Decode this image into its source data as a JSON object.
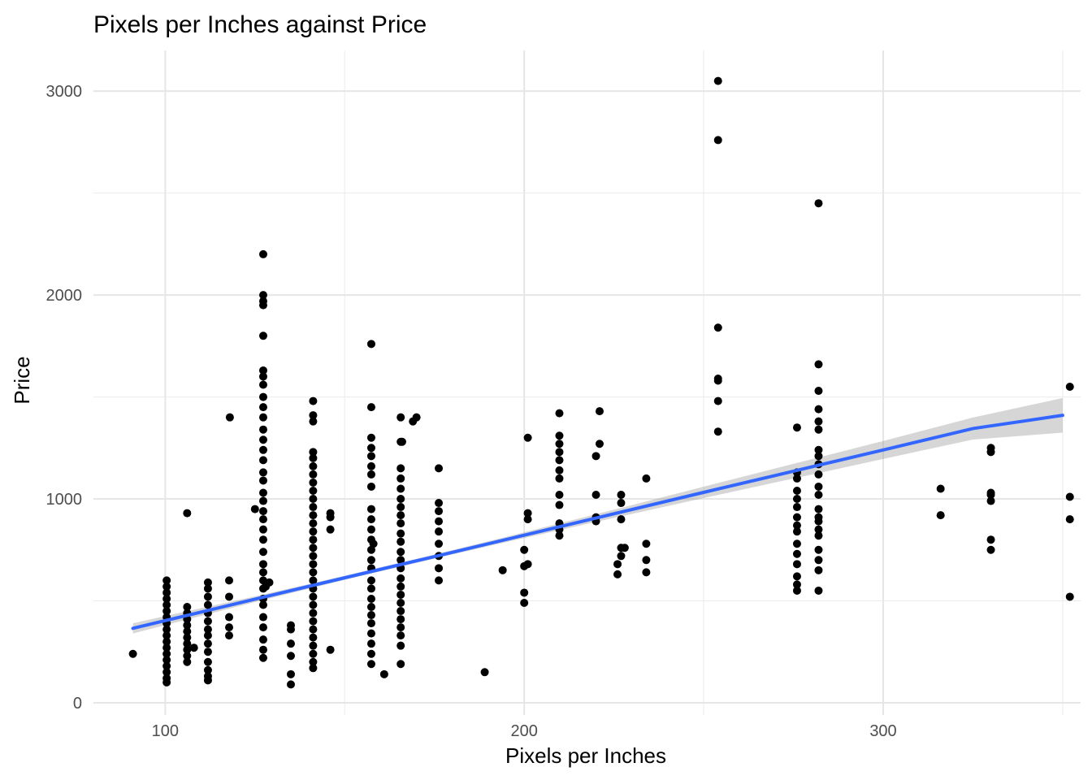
{
  "chart_data": {
    "type": "scatter",
    "title": "Pixels per Inches against Price",
    "xlabel": "Pixels per Inches",
    "ylabel": "Price",
    "xlim": [
      80,
      355
    ],
    "ylim": [
      -60,
      3200
    ],
    "x_ticks": [
      100,
      200,
      300
    ],
    "y_ticks": [
      0,
      1000,
      2000,
      3000
    ],
    "x_minor_ticks": [
      150,
      250,
      350
    ],
    "y_minor_ticks": [
      500,
      1500,
      2500
    ],
    "grid": true,
    "point_color": "#000000",
    "trend": {
      "method": "linear",
      "color": "#3366FF",
      "band_color": "#999999",
      "x": [
        91,
        100,
        125,
        150,
        175,
        200,
        225,
        250,
        275,
        300,
        325,
        350
      ],
      "y": [
        365,
        403,
        508,
        613,
        717,
        822,
        927,
        1032,
        1136,
        1240,
        1345,
        1410
      ],
      "band_halfwidth": [
        25,
        22,
        14,
        10,
        10,
        14,
        20,
        28,
        36,
        44,
        54,
        85
      ]
    },
    "clusters": [
      {
        "x": 100.4,
        "y_values": [
          100,
          120,
          150,
          180,
          210,
          240,
          270,
          300,
          330,
          360,
          390,
          420,
          450,
          480,
          510,
          540,
          570,
          600
        ]
      },
      {
        "x": 106.1,
        "y_values": [
          200,
          230,
          260,
          290,
          320,
          350,
          380,
          410,
          440,
          470,
          930
        ]
      },
      {
        "x": 111.9,
        "y_values": [
          110,
          130,
          160,
          200,
          250,
          290,
          330,
          360,
          400,
          440,
          480,
          520,
          560,
          590
        ]
      },
      {
        "x": 117.8,
        "y_values": [
          330,
          370,
          420,
          520,
          600
        ]
      },
      {
        "x": 127.3,
        "y_values": [
          220,
          260,
          310,
          370,
          420,
          480,
          510,
          560,
          600,
          640,
          680,
          740,
          800,
          850,
          900,
          940,
          990,
          1030,
          1090,
          1130,
          1190,
          1240,
          1290,
          1340,
          1400,
          1450,
          1500,
          1560,
          1600,
          1630,
          1800,
          1950,
          1970,
          2000,
          2200
        ]
      },
      {
        "x": 141.2,
        "y_values": [
          170,
          200,
          240,
          280,
          320,
          360,
          400,
          440,
          480,
          520,
          560,
          600,
          640,
          680,
          720,
          760,
          800,
          840,
          880,
          920,
          960,
          1000,
          1040,
          1080,
          1120,
          1160,
          1200,
          1230,
          1380,
          1410,
          1480
        ]
      },
      {
        "x": 157.4,
        "y_values": [
          190,
          240,
          290,
          340,
          390,
          430,
          470,
          510,
          560,
          600,
          660,
          700,
          750,
          800,
          850,
          900,
          950,
          1060,
          1120,
          1160,
          1210,
          1250,
          1300,
          1450,
          1760
        ]
      },
      {
        "x": 165.6,
        "y_values": [
          190,
          280,
          330,
          370,
          410,
          450,
          490,
          530,
          570,
          610,
          660,
          700,
          740,
          790,
          830,
          880,
          920,
          960,
          1000,
          1050,
          1100,
          1150,
          1280,
          1400
        ]
      },
      {
        "x": 176.2,
        "y_values": [
          600,
          660,
          720,
          780,
          840,
          890,
          940,
          980,
          1150
        ]
      },
      {
        "x": 209.8,
        "y_values": [
          820,
          850,
          880,
          970,
          1020,
          1100,
          1140,
          1190,
          1230,
          1270,
          1310,
          1420
        ]
      },
      {
        "x": 282.0,
        "y_values": [
          550,
          650,
          700,
          750,
          820,
          850,
          890,
          910,
          950,
          1020,
          1060,
          1120,
          1170,
          1210,
          1240,
          1340,
          1380,
          1440,
          1530,
          1660,
          2450
        ]
      },
      {
        "x": 276.0,
        "y_values": [
          550,
          580,
          620,
          680,
          730,
          780,
          840,
          870,
          910,
          960,
          1000,
          1040,
          1100,
          1130,
          1350
        ]
      }
    ],
    "points": [
      [
        91,
        240
      ],
      [
        108,
        270
      ],
      [
        118,
        1400
      ],
      [
        125,
        950
      ],
      [
        128,
        570
      ],
      [
        129,
        590
      ],
      [
        135,
        90
      ],
      [
        135,
        140
      ],
      [
        135,
        230
      ],
      [
        135,
        290
      ],
      [
        135,
        360
      ],
      [
        135,
        380
      ],
      [
        146,
        260
      ],
      [
        146,
        850
      ],
      [
        146,
        910
      ],
      [
        146,
        930
      ],
      [
        158,
        780
      ],
      [
        161,
        140
      ],
      [
        166,
        1280
      ],
      [
        169,
        1380
      ],
      [
        170,
        1400
      ],
      [
        189,
        150
      ],
      [
        194,
        650
      ],
      [
        200,
        490
      ],
      [
        200,
        540
      ],
      [
        200,
        670
      ],
      [
        200,
        750
      ],
      [
        201,
        680
      ],
      [
        201,
        900
      ],
      [
        201,
        930
      ],
      [
        201,
        1300
      ],
      [
        220,
        890
      ],
      [
        220,
        910
      ],
      [
        220,
        1020
      ],
      [
        220,
        1210
      ],
      [
        221,
        1270
      ],
      [
        221,
        1430
      ],
      [
        226,
        630
      ],
      [
        226,
        680
      ],
      [
        227,
        720
      ],
      [
        227,
        760
      ],
      [
        227,
        900
      ],
      [
        227,
        980
      ],
      [
        227,
        1020
      ],
      [
        228,
        760
      ],
      [
        234,
        640
      ],
      [
        234,
        700
      ],
      [
        234,
        780
      ],
      [
        234,
        1100
      ],
      [
        254,
        1330
      ],
      [
        254,
        1480
      ],
      [
        254,
        1580
      ],
      [
        254,
        1590
      ],
      [
        254,
        1840
      ],
      [
        254,
        2760
      ],
      [
        254,
        3050
      ],
      [
        316,
        920
      ],
      [
        316,
        1050
      ],
      [
        330,
        750
      ],
      [
        330,
        800
      ],
      [
        330,
        990
      ],
      [
        330,
        1020
      ],
      [
        330,
        1030
      ],
      [
        330,
        1230
      ],
      [
        330,
        1250
      ],
      [
        352,
        520
      ],
      [
        352,
        900
      ],
      [
        352,
        1010
      ],
      [
        352,
        1550
      ]
    ]
  }
}
